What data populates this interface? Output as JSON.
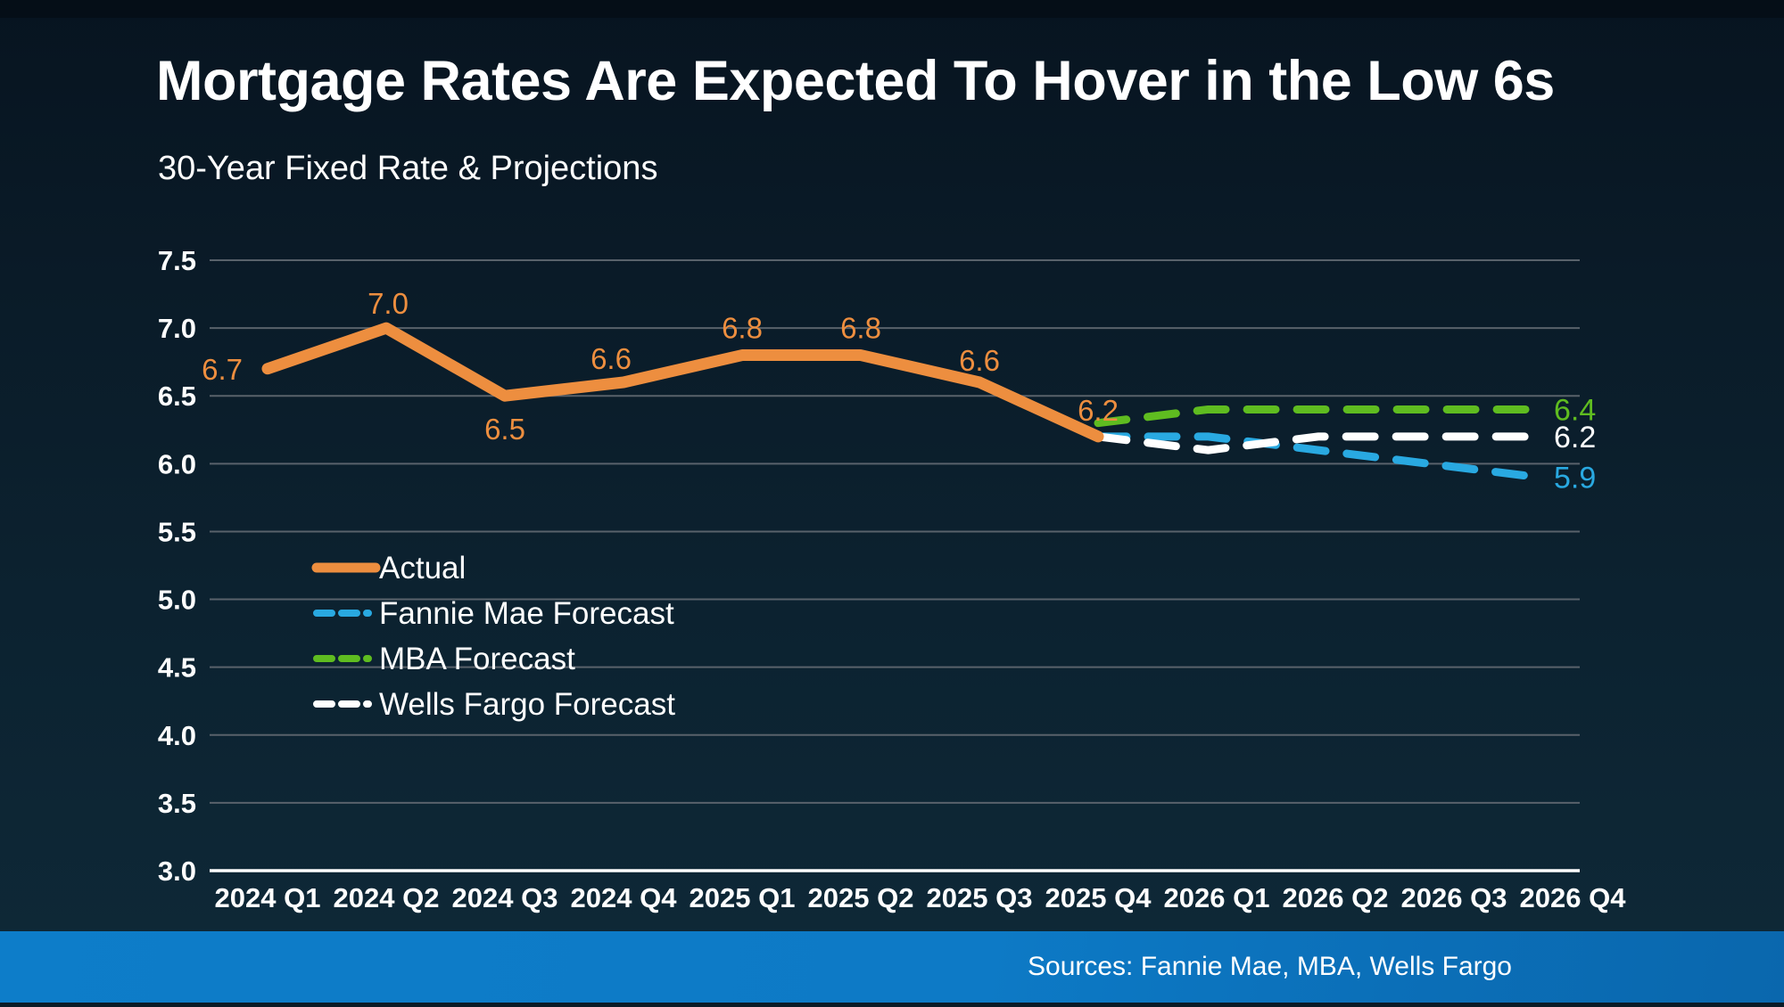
{
  "page": {
    "title": "Mortgage Rates Are Expected To Hover in the Low 6s",
    "subtitle": "30-Year Fixed Rate & Projections",
    "source_note": "Sources: Fannie Mae, MBA, Wells Fargo"
  },
  "colors": {
    "background_top": "#071420",
    "background_bottom": "#0e2938",
    "footer_bar": "#0d7ac6",
    "actual": "#ED8E3F",
    "fannie_mae": "#29A9E1",
    "mba": "#5FBC20",
    "wells_fargo": "#FFFFFF",
    "gridline": "#59626B",
    "axis_line": "#FFFFFF",
    "tick_text": "#FFFFFF",
    "legend_text": "#FFFFFF"
  },
  "chart_data": {
    "type": "line",
    "title": "30-Year Fixed Rate & Projections",
    "categories": [
      "2024 Q1",
      "2024 Q2",
      "2024 Q3",
      "2024 Q4",
      "2025 Q1",
      "2025 Q2",
      "2025 Q3",
      "2025 Q4",
      "2026 Q1",
      "2026 Q2",
      "2026 Q3",
      "2026 Q4"
    ],
    "ylim": [
      3.0,
      7.5
    ],
    "ytick_step": 0.5,
    "yticks": [
      "7.5",
      "7.0",
      "6.5",
      "6.0",
      "5.5",
      "5.0",
      "4.5",
      "4.0",
      "3.5",
      "3.0"
    ],
    "grid": true,
    "legend_position": "inside-left",
    "series": [
      {
        "name": "Actual",
        "color_key": "actual",
        "style": "solid",
        "values": [
          6.7,
          7.0,
          6.5,
          6.6,
          6.8,
          6.8,
          6.6,
          6.2,
          null,
          null,
          null,
          null
        ],
        "point_labels": [
          "6.7",
          "7.0",
          "6.5",
          "6.6",
          "6.8",
          "6.8",
          "6.6",
          "6.2"
        ]
      },
      {
        "name": "Fannie Mae Forecast",
        "color_key": "fannie_mae",
        "style": "dashed",
        "values": [
          null,
          null,
          null,
          null,
          null,
          null,
          null,
          6.2,
          6.2,
          6.1,
          6.0,
          5.9
        ],
        "end_label": "5.9"
      },
      {
        "name": "MBA Forecast",
        "color_key": "mba",
        "style": "dashed",
        "values": [
          null,
          null,
          null,
          null,
          null,
          null,
          null,
          6.3,
          6.4,
          6.4,
          6.4,
          6.4
        ],
        "end_label": "6.4"
      },
      {
        "name": "Wells Fargo Forecast",
        "color_key": "wells_fargo",
        "style": "dashed",
        "values": [
          null,
          null,
          null,
          null,
          null,
          null,
          null,
          6.2,
          6.1,
          6.2,
          6.2,
          6.2
        ],
        "end_label": "6.2"
      }
    ]
  },
  "legend": {
    "items": [
      {
        "label": "Actual"
      },
      {
        "label": "Fannie Mae Forecast"
      },
      {
        "label": "MBA Forecast"
      },
      {
        "label": "Wells Fargo Forecast"
      }
    ]
  }
}
